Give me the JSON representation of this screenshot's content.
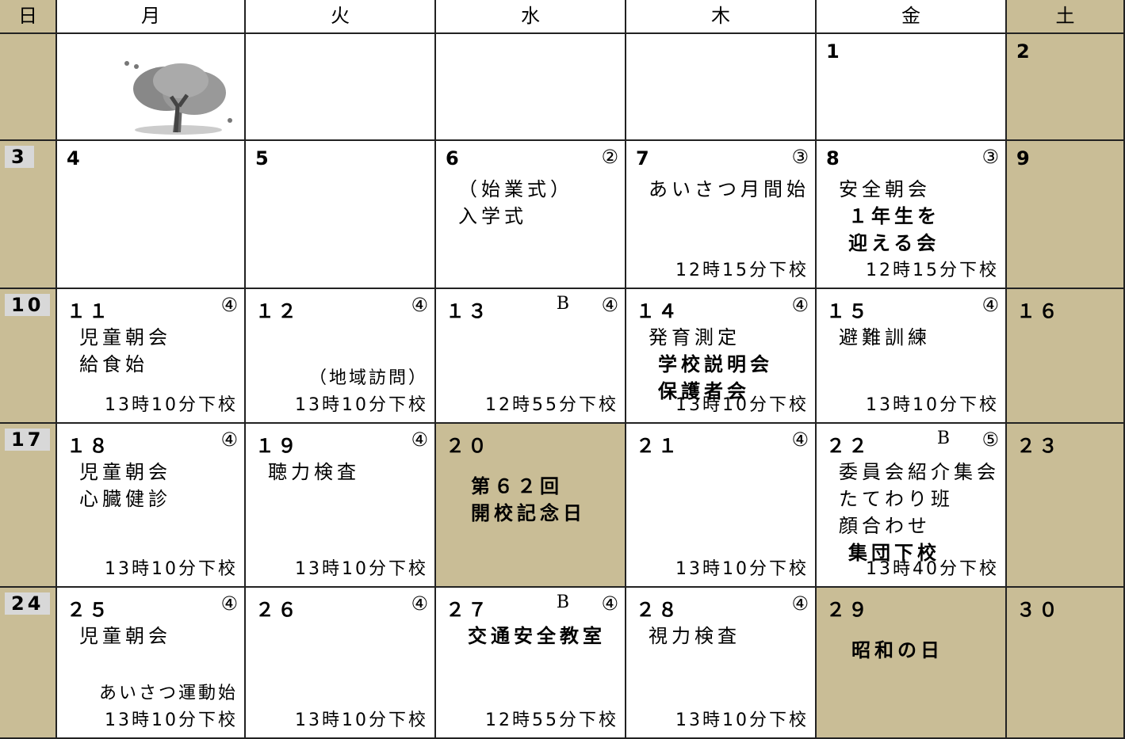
{
  "header": [
    "日",
    "月",
    "火",
    "水",
    "木",
    "金",
    "土"
  ],
  "weeks": [
    [
      null,
      null,
      null,
      null,
      null,
      {
        "day": "1"
      },
      {
        "day": "2"
      }
    ],
    [
      {
        "day": "3"
      },
      {
        "day": "4"
      },
      {
        "day": "5"
      },
      {
        "day": "6",
        "badge": "②",
        "lines": [
          {
            "text": "（始業式）",
            "bold": false
          },
          {
            "text": "入学式",
            "bold": false
          }
        ]
      },
      {
        "day": "7",
        "badge": "③",
        "lines": [
          {
            "text": "あいさつ月間始",
            "bold": false
          }
        ],
        "foot": [
          "12時15分下校"
        ]
      },
      {
        "day": "8",
        "badge": "③",
        "lines": [
          {
            "text": "安全朝会",
            "bold": false
          },
          {
            "text": "１年生を",
            "bold": true
          },
          {
            "text": "迎える会",
            "bold": true
          }
        ],
        "foot": [
          "12時15分下校"
        ]
      },
      {
        "day": "9"
      }
    ],
    [
      {
        "day": "10"
      },
      {
        "day": "１１",
        "badge": "④",
        "lines": [
          {
            "text": "児童朝会",
            "bold": false
          },
          {
            "text": "給食始",
            "bold": false
          }
        ],
        "foot": [
          "13時10分下校"
        ]
      },
      {
        "day": "１２",
        "badge": "④",
        "foot": [
          "（地域訪問）",
          "13時10分下校"
        ]
      },
      {
        "day": "１３",
        "mark": "B",
        "badge": "④",
        "foot": [
          "12時55分下校"
        ]
      },
      {
        "day": "１４",
        "badge": "④",
        "lines": [
          {
            "text": "発育測定",
            "bold": false
          },
          {
            "text": "学校説明会",
            "bold": true
          },
          {
            "text": "保護者会",
            "bold": true
          }
        ],
        "foot": [
          "13時10分下校"
        ]
      },
      {
        "day": "１５",
        "badge": "④",
        "lines": [
          {
            "text": "避難訓練",
            "bold": false
          }
        ],
        "foot": [
          "13時10分下校"
        ]
      },
      {
        "day": "１６"
      }
    ],
    [
      {
        "day": "17"
      },
      {
        "day": "１８",
        "badge": "④",
        "lines": [
          {
            "text": "児童朝会",
            "bold": false
          },
          {
            "text": "心臓健診",
            "bold": false
          }
        ],
        "foot": [
          "13時10分下校"
        ]
      },
      {
        "day": "１９",
        "badge": "④",
        "lines": [
          {
            "text": "聴力検査",
            "bold": false
          }
        ],
        "foot": [
          "13時10分下校"
        ]
      },
      {
        "day": "２０",
        "holiday": true,
        "lines": [
          {
            "text": "第６２回",
            "bold": true
          },
          {
            "text": "開校記念日",
            "bold": true
          }
        ]
      },
      {
        "day": "２１",
        "badge": "④",
        "foot": [
          "13時10分下校"
        ]
      },
      {
        "day": "２２",
        "mark": "B",
        "badge": "⑤",
        "lines": [
          {
            "text": "委員会紹介集会",
            "bold": false
          },
          {
            "text": "たてわり班",
            "bold": false
          },
          {
            "text": "顔合わせ",
            "bold": false
          },
          {
            "text": "集団下校",
            "bold": true
          }
        ],
        "foot": [
          "13時40分下校"
        ]
      },
      {
        "day": "２３"
      }
    ],
    [
      {
        "day": "24"
      },
      {
        "day": "２５",
        "badge": "④",
        "lines": [
          {
            "text": "児童朝会",
            "bold": false
          }
        ],
        "foot": [
          "あいさつ運動始",
          "13時10分下校"
        ]
      },
      {
        "day": "２６",
        "badge": "④",
        "foot": [
          "13時10分下校"
        ]
      },
      {
        "day": "２７",
        "mark": "B",
        "badge": "④",
        "lines": [
          {
            "text": "交通安全教室",
            "bold": true
          }
        ],
        "foot": [
          "12時55分下校"
        ]
      },
      {
        "day": "２８",
        "badge": "④",
        "lines": [
          {
            "text": "視力検査",
            "bold": false
          }
        ],
        "foot": [
          "13時10分下校"
        ]
      },
      {
        "day": "２９",
        "holiday": true,
        "lines": [
          {
            "text": "昭和の日",
            "bold": true
          }
        ]
      },
      {
        "day": "３０"
      }
    ]
  ]
}
